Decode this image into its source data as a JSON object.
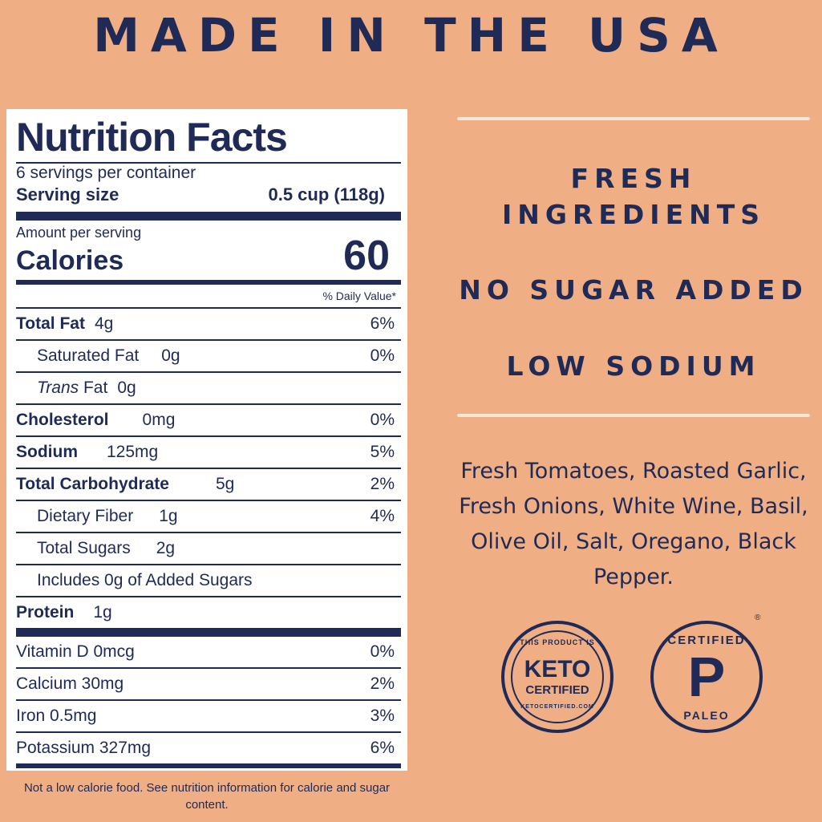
{
  "headline": "MADE IN THE USA",
  "nutrition": {
    "title": "Nutrition Facts",
    "servings_per_container": "6 servings per container",
    "serving_size_label": "Serving size",
    "serving_size_value": "0.5 cup (118g)",
    "amount_per_serving": "Amount per serving",
    "calories_label": "Calories",
    "calories_value": "60",
    "daily_value_header": "% Daily Value*",
    "rows": [
      {
        "name": "Total Fat",
        "amount": "4g",
        "dv": "6%"
      },
      {
        "name": "Saturated Fat",
        "amount": "0g",
        "dv": "0%"
      },
      {
        "name": "Trans",
        "name_suffix": "Fat",
        "amount": "0g",
        "dv": ""
      },
      {
        "name": "Cholesterol",
        "amount": "0mg",
        "dv": "0%"
      },
      {
        "name": "Sodium",
        "amount": "125mg",
        "dv": "5%"
      },
      {
        "name": "Total Carbohydrate",
        "amount": "5g",
        "dv": "2%"
      },
      {
        "name": "Dietary Fiber",
        "amount": "1g",
        "dv": "4%"
      },
      {
        "name": "Total Sugars",
        "amount": "2g",
        "dv": ""
      },
      {
        "name": "Includes 0g of Added Sugars",
        "amount": "",
        "dv": ""
      },
      {
        "name": "Protein",
        "amount": "1g",
        "dv": ""
      }
    ],
    "vitamins": [
      {
        "label": "Vitamin D 0mcg",
        "dv": "0%"
      },
      {
        "label": "Calcium 30mg",
        "dv": "2%"
      },
      {
        "label": "Iron 0.5mg",
        "dv": "3%"
      },
      {
        "label": "Potassium 327mg",
        "dv": "6%"
      }
    ],
    "footnote": "Not a low calorie food. See nutrition information for calorie and sugar content."
  },
  "claims": {
    "fresh_line1": "FRESH",
    "fresh_line2": "INGREDIENTS",
    "no_sugar": "NO SUGAR ADDED",
    "low_sodium": "LOW SODIUM"
  },
  "ingredients": "Fresh Tomatoes, Roasted Garlic, Fresh Onions, White Wine, Basil, Olive Oil, Salt, Oregano, Black Pepper.",
  "badges": {
    "keto_top": "THIS PRODUCT IS",
    "keto_line1": "KETO",
    "keto_line2": "CERTIFIED",
    "keto_bottom": "KETOCERTIFIED.COM",
    "paleo_top": "CERTIFIED",
    "paleo_letter": "P",
    "paleo_bottom": "PALEO",
    "registered_mark": "®"
  },
  "colors": {
    "background": "#efae83",
    "navy": "#1f2a56",
    "panel": "#ffffff"
  }
}
